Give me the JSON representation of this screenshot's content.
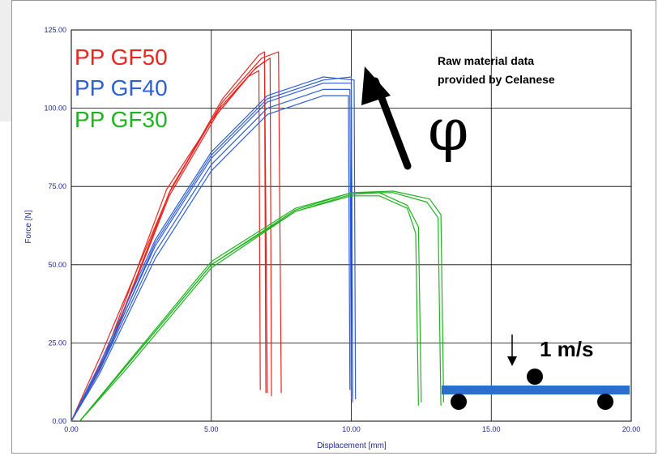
{
  "chart_data": {
    "type": "line",
    "title": "",
    "xlabel": "Displacement [mm]",
    "ylabel": "Force [N]",
    "xlim": [
      0,
      20
    ],
    "ylim": [
      0,
      125
    ],
    "x_ticks": [
      "0.00",
      "5.00",
      "10.00",
      "15.00",
      "20.00"
    ],
    "y_ticks": [
      "0.00",
      "25.00",
      "50.00",
      "75.00",
      "100.00",
      "125.00"
    ],
    "grid": true,
    "legend": {
      "placement": "top-left",
      "entries": [
        "PP GF50",
        "PP GF40",
        "PP GF30"
      ]
    },
    "annotations": {
      "note_line1": "Raw material data",
      "note_line2": "provided by Celanese",
      "symbol": "φ",
      "speed": "1 m/s"
    },
    "colors": {
      "GF50": "#e8261f",
      "GF40": "#2f5fd6",
      "GF30": "#1fb31f",
      "fixture": "#2a6fd0"
    },
    "series": [
      {
        "name": "PP GF50",
        "color": "#e8261f",
        "curves": [
          {
            "points": [
              [
                0,
                0
              ],
              [
                1.2,
                20
              ],
              [
                3.5,
                73
              ],
              [
                5,
                96
              ],
              [
                6.3,
                110
              ],
              [
                6.7,
                112
              ],
              [
                6.75,
                10
              ]
            ]
          },
          {
            "points": [
              [
                0,
                0
              ],
              [
                1.3,
                22
              ],
              [
                3.5,
                72
              ],
              [
                5.2,
                98
              ],
              [
                6.5,
                112
              ],
              [
                6.9,
                115
              ],
              [
                6.95,
                9
              ]
            ]
          },
          {
            "points": [
              [
                0,
                0
              ],
              [
                1.2,
                21
              ],
              [
                3.4,
                74
              ],
              [
                5.3,
                100
              ],
              [
                6.6,
                113
              ],
              [
                7.1,
                116
              ],
              [
                7.15,
                8
              ]
            ]
          },
          {
            "points": [
              [
                0,
                0
              ],
              [
                1.1,
                22
              ],
              [
                3.6,
                75
              ],
              [
                5.4,
                102
              ],
              [
                6.8,
                116
              ],
              [
                7.4,
                118
              ],
              [
                7.5,
                9
              ]
            ]
          },
          {
            "points": [
              [
                0,
                0
              ],
              [
                1.2,
                20
              ],
              [
                3.5,
                73
              ],
              [
                5.4,
                103
              ],
              [
                6.7,
                117
              ],
              [
                6.9,
                118
              ],
              [
                7.0,
                9
              ]
            ]
          }
        ]
      },
      {
        "name": "PP GF40",
        "color": "#2f5fd6",
        "curves": [
          {
            "points": [
              [
                0,
                0
              ],
              [
                1,
                15
              ],
              [
                3,
                52
              ],
              [
                5,
                80
              ],
              [
                7,
                98
              ],
              [
                9,
                104
              ],
              [
                9.9,
                104
              ],
              [
                9.95,
                10
              ]
            ]
          },
          {
            "points": [
              [
                0,
                0
              ],
              [
                1,
                16
              ],
              [
                3,
                54
              ],
              [
                5,
                82
              ],
              [
                7,
                100
              ],
              [
                9,
                106
              ],
              [
                9.95,
                106
              ],
              [
                10,
                7
              ]
            ]
          },
          {
            "points": [
              [
                0,
                0
              ],
              [
                1,
                17
              ],
              [
                3,
                56
              ],
              [
                5,
                84
              ],
              [
                7,
                102
              ],
              [
                9,
                108
              ],
              [
                10,
                108
              ],
              [
                10.05,
                6
              ]
            ]
          },
          {
            "points": [
              [
                0,
                0
              ],
              [
                1,
                18
              ],
              [
                3,
                58
              ],
              [
                5,
                86
              ],
              [
                7,
                104
              ],
              [
                9,
                110
              ],
              [
                10.1,
                109
              ],
              [
                10.15,
                7
              ]
            ]
          },
          {
            "points": [
              [
                0,
                0
              ],
              [
                1,
                16
              ],
              [
                3,
                57
              ],
              [
                5,
                85
              ],
              [
                7,
                103
              ],
              [
                9,
                109
              ],
              [
                10,
                110
              ],
              [
                10.05,
                8
              ]
            ]
          }
        ]
      },
      {
        "name": "PP GF30",
        "color": "#1fb31f",
        "curves": [
          {
            "points": [
              [
                0.3,
                0
              ],
              [
                2,
                18
              ],
              [
                5,
                50
              ],
              [
                8,
                67
              ],
              [
                10,
                72
              ],
              [
                11,
                72
              ],
              [
                12,
                68
              ],
              [
                12.3,
                60
              ],
              [
                12.4,
                5
              ]
            ]
          },
          {
            "points": [
              [
                0.3,
                0
              ],
              [
                2,
                17
              ],
              [
                5,
                49
              ],
              [
                8,
                67
              ],
              [
                10,
                72.5
              ],
              [
                11,
                73
              ],
              [
                12,
                69
              ],
              [
                12.4,
                62
              ],
              [
                12.5,
                6
              ]
            ]
          },
          {
            "points": [
              [
                0.3,
                0
              ],
              [
                2,
                18
              ],
              [
                5,
                50
              ],
              [
                8,
                67.5
              ],
              [
                10,
                73
              ],
              [
                11.5,
                73
              ],
              [
                12.7,
                70
              ],
              [
                13.1,
                65
              ],
              [
                13.2,
                5
              ]
            ]
          },
          {
            "points": [
              [
                0.3,
                0
              ],
              [
                2,
                18.5
              ],
              [
                5,
                51
              ],
              [
                8,
                68
              ],
              [
                10,
                73
              ],
              [
                11.5,
                73.5
              ],
              [
                12.8,
                71
              ],
              [
                13.2,
                66
              ],
              [
                13.3,
                6
              ]
            ]
          }
        ]
      }
    ]
  }
}
